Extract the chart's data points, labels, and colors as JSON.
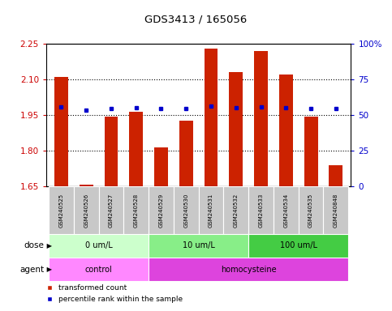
{
  "title": "GDS3413 / 165056",
  "samples": [
    "GSM240525",
    "GSM240526",
    "GSM240527",
    "GSM240528",
    "GSM240529",
    "GSM240530",
    "GSM240531",
    "GSM240532",
    "GSM240533",
    "GSM240534",
    "GSM240535",
    "GSM240848"
  ],
  "red_values": [
    2.11,
    1.657,
    1.943,
    1.965,
    1.815,
    1.925,
    2.23,
    2.13,
    2.22,
    2.12,
    1.942,
    1.74
  ],
  "blue_values": [
    1.984,
    1.972,
    1.979,
    1.981,
    1.977,
    1.978,
    1.986,
    1.982,
    1.984,
    1.981,
    1.979,
    1.977
  ],
  "ymin": 1.65,
  "ymax": 2.25,
  "yticks": [
    1.65,
    1.8,
    1.95,
    2.1,
    2.25
  ],
  "ytick_labels": [
    "1.65",
    "1.80",
    "1.95",
    "2.10",
    "2.25"
  ],
  "y2ticks": [
    0,
    25,
    50,
    75,
    100
  ],
  "y2tick_labels": [
    "0",
    "25",
    "50",
    "75",
    "100%"
  ],
  "dose_groups": [
    {
      "label": "0 um/L",
      "start": 0,
      "end": 4,
      "color": "#ccffcc"
    },
    {
      "label": "10 um/L",
      "start": 4,
      "end": 8,
      "color": "#88ee88"
    },
    {
      "label": "100 um/L",
      "start": 8,
      "end": 12,
      "color": "#44cc44"
    }
  ],
  "agent_groups": [
    {
      "label": "control",
      "start": 0,
      "end": 4,
      "color": "#ff88ff"
    },
    {
      "label": "homocysteine",
      "start": 4,
      "end": 12,
      "color": "#dd44dd"
    }
  ],
  "bar_color": "#cc2200",
  "dot_color": "#0000cc",
  "bar_width": 0.55,
  "legend_items": [
    {
      "label": "transformed count",
      "color": "#cc2200"
    },
    {
      "label": "percentile rank within the sample",
      "color": "#0000cc"
    }
  ]
}
